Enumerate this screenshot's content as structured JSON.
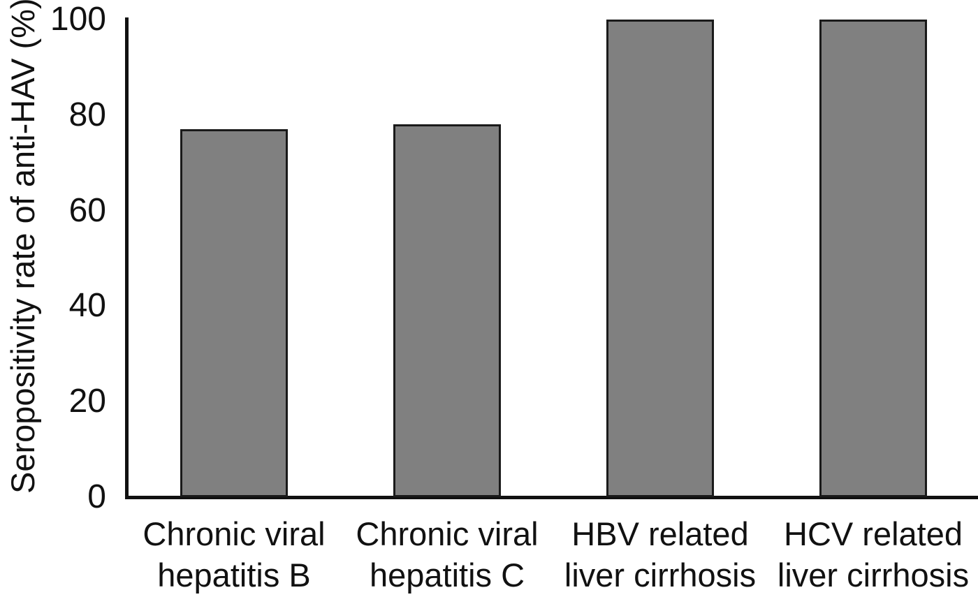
{
  "chart_data": {
    "type": "bar",
    "title": "",
    "xlabel": "",
    "ylabel": "Seropositivity rate of anti-HAV (%)",
    "categories": [
      "Chronic viral hepatitis B",
      "Chronic viral hepatitis C",
      "HBV related liver cirrhosis",
      "HCV related liver cirrhosis"
    ],
    "category_lines": [
      [
        "Chronic viral",
        "hepatitis B"
      ],
      [
        "Chronic viral",
        "hepatitis C"
      ],
      [
        "HBV related",
        "liver cirrhosis"
      ],
      [
        "HCV related",
        "liver cirrhosis"
      ]
    ],
    "values": [
      77,
      78,
      100,
      100
    ],
    "ylim": [
      0,
      100
    ],
    "yticks": [
      0,
      20,
      40,
      60,
      80,
      100
    ],
    "grid": false,
    "legend": null,
    "bar_color": "#808080",
    "bar_border_color": "#1a1a1a",
    "axis_color": "#111111"
  }
}
